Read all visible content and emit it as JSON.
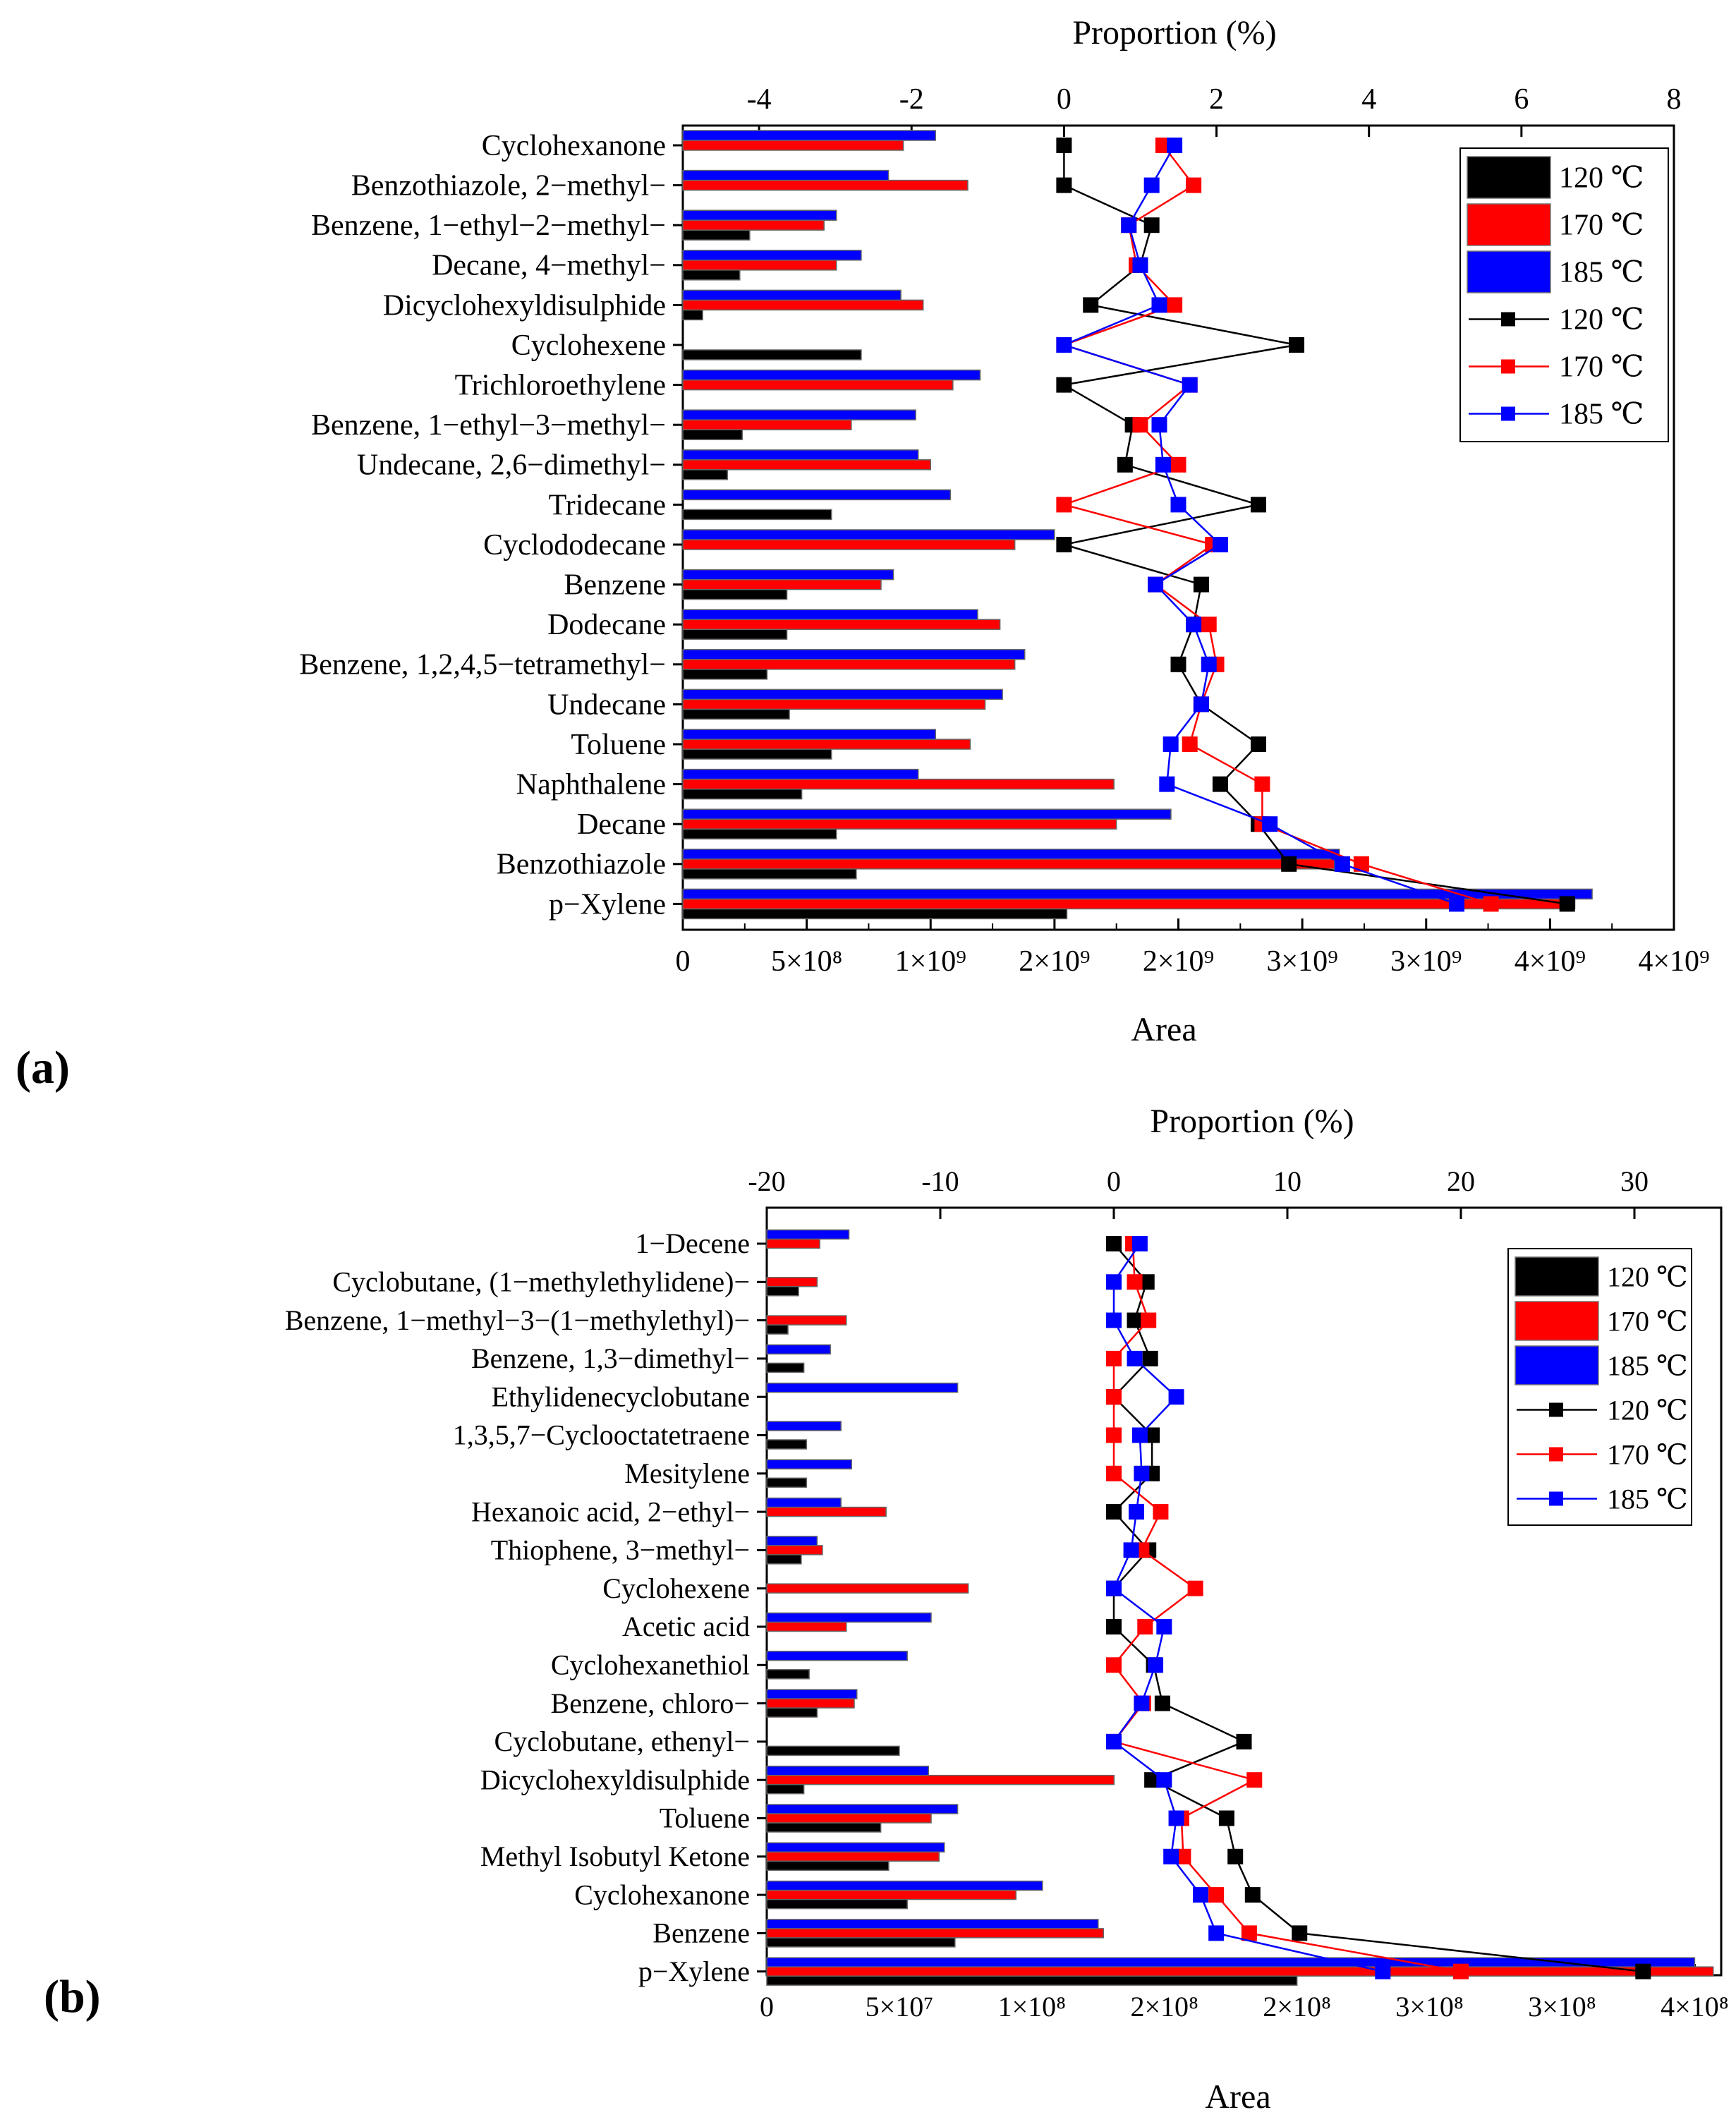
{
  "colors": {
    "t120": "#000000",
    "t170": "#ff0000",
    "t185": "#0000ff"
  },
  "chart_data": [
    {
      "panel_label": "(a)",
      "type": "bar+line",
      "xlabel": "Area",
      "x2label": "Proportion (%)",
      "xlim": [
        0,
        4000000000
      ],
      "x_tick_values": [
        0,
        500000000,
        1000000000,
        1500000000,
        2000000000,
        2500000000,
        3000000000,
        3500000000,
        4000000000
      ],
      "x_tick_labels": [
        "0",
        "5×10⁸",
        "1×10⁹",
        "2×10⁹",
        "2×10⁹",
        "3×10⁹",
        "3×10⁹",
        "4×10⁹",
        "4×10⁹"
      ],
      "x2lim": [
        -5,
        8
      ],
      "x2_tick_values": [
        -4,
        -2,
        0,
        2,
        4,
        6,
        8
      ],
      "x2_tick_labels": [
        "-4",
        "-2",
        "0",
        "2",
        "4",
        "6",
        "8"
      ],
      "legend": [
        "120 ℃",
        "170 ℃",
        "185 ℃",
        "120 ℃",
        "170 ℃",
        "185 ℃"
      ],
      "legend_position": "top-right",
      "categories": [
        "Cyclohexanone",
        "Benzothiazole, 2−methyl−",
        "Benzene, 1−ethyl−2−methyl−",
        "Decane, 4−methyl−",
        "Dicyclohexyldisulphide",
        "Cyclohexene",
        "Trichloroethylene",
        "Benzene, 1−ethyl−3−methyl−",
        "Undecane, 2,6−dimethyl−",
        "Tridecane",
        "Cyclododecane",
        "Benzene",
        "Dodecane",
        "Benzene, 1,2,4,5−tetramethyl−",
        "Undecane",
        "Toluene",
        "Naphthalene",
        "Decane",
        "Benzothiazole",
        "p−Xylene"
      ],
      "bar_series": [
        {
          "name": "120 ℃",
          "color_key": "t120",
          "values": [
            0,
            0,
            270000000,
            230000000,
            80000000,
            720000000,
            0,
            240000000,
            180000000,
            600000000,
            0,
            420000000,
            420000000,
            340000000,
            430000000,
            600000000,
            480000000,
            620000000,
            700000000,
            1550000000
          ]
        },
        {
          "name": "170 ℃",
          "color_key": "t170",
          "values": [
            890000000,
            1150000000,
            570000000,
            620000000,
            970000000,
            0,
            1090000000,
            680000000,
            1000000000,
            0,
            1340000000,
            800000000,
            1280000000,
            1340000000,
            1220000000,
            1160000000,
            1740000000,
            1750000000,
            2630000000,
            3600000000
          ]
        },
        {
          "name": "185 ℃",
          "color_key": "t185",
          "values": [
            1020000000,
            830000000,
            620000000,
            720000000,
            880000000,
            0,
            1200000000,
            940000000,
            950000000,
            1080000000,
            1500000000,
            850000000,
            1190000000,
            1380000000,
            1290000000,
            1020000000,
            950000000,
            1970000000,
            2650000000,
            3670000000
          ]
        }
      ],
      "line_series": [
        {
          "name": "120 ℃",
          "color_key": "t120",
          "values": [
            0,
            0,
            1.15,
            1.0,
            0.35,
            3.05,
            0,
            0.9,
            0.8,
            2.55,
            0,
            1.8,
            1.7,
            1.5,
            1.8,
            2.55,
            2.05,
            2.55,
            2.95,
            6.6
          ]
        },
        {
          "name": "170 ℃",
          "color_key": "t170",
          "values": [
            1.3,
            1.7,
            0.85,
            0.95,
            1.45,
            0,
            1.65,
            1.0,
            1.5,
            0,
            1.95,
            1.2,
            1.9,
            2.0,
            1.8,
            1.65,
            2.6,
            2.6,
            3.9,
            5.6
          ]
        },
        {
          "name": "185 ℃",
          "color_key": "t185",
          "values": [
            1.45,
            1.15,
            0.85,
            1.0,
            1.25,
            0,
            1.65,
            1.25,
            1.3,
            1.5,
            2.05,
            1.2,
            1.7,
            1.9,
            1.8,
            1.4,
            1.35,
            2.7,
            3.65,
            5.15
          ]
        }
      ]
    },
    {
      "panel_label": "(b)",
      "type": "bar+line",
      "xlabel": "Area",
      "x2label": "Proportion (%)",
      "xlim": [
        0,
        360000000
      ],
      "x_tick_values": [
        0,
        50000000,
        100000000,
        150000000,
        200000000,
        250000000,
        300000000,
        350000000
      ],
      "x_tick_labels": [
        "0",
        "5×10⁷",
        "1×10⁸",
        "2×10⁸",
        "2×10⁸",
        "3×10⁸",
        "3×10⁸",
        "4×10⁸"
      ],
      "x2lim": [
        -20,
        35
      ],
      "x2_tick_values": [
        -20,
        -10,
        0,
        10,
        20,
        30
      ],
      "x2_tick_labels": [
        "-20",
        "-10",
        "0",
        "10",
        "20",
        "30"
      ],
      "legend": [
        "120 ℃",
        "170 ℃",
        "185 ℃",
        "120 ℃",
        "170 ℃",
        "185 ℃"
      ],
      "legend_position": "top-right",
      "categories": [
        "1−Decene",
        "Cyclobutane, (1−methylethylidene)−",
        "Benzene, 1−methyl−3−(1−methylethyl)−",
        "Benzene, 1,3−dimethyl−",
        "Ethylidenecyclobutane",
        "1,3,5,7−Cyclooctatetraene",
        "Mesitylene",
        "Hexanoic acid, 2−ethyl−",
        "Thiophene, 3−methyl−",
        "Cyclohexene",
        "Acetic acid",
        "Cyclohexanethiol",
        "Benzene, chloro−",
        "Cyclobutane, ethenyl−",
        "Dicyclohexyldisulphide",
        "Toluene",
        "Methyl Isobutyl Ketone",
        "Cyclohexanone",
        "Benzene",
        "p−Xylene"
      ],
      "bar_series": [
        {
          "name": "120 ℃",
          "color_key": "t120",
          "values": [
            0,
            12000000,
            8000000,
            14000000,
            0,
            15000000,
            15000000,
            0,
            13000000,
            0,
            0,
            16000000,
            19000000,
            50000000,
            14000000,
            43000000,
            46000000,
            53000000,
            71000000,
            200000000
          ]
        },
        {
          "name": "170 ℃",
          "color_key": "t170",
          "values": [
            20000000,
            19000000,
            30000000,
            0,
            0,
            0,
            0,
            45000000,
            21000000,
            76000000,
            30000000,
            0,
            33000000,
            0,
            131000000,
            62000000,
            65000000,
            94000000,
            127000000,
            357000000
          ]
        },
        {
          "name": "185 ℃",
          "color_key": "t185",
          "values": [
            31000000,
            0,
            0,
            24000000,
            72000000,
            28000000,
            32000000,
            28000000,
            19000000,
            0,
            62000000,
            53000000,
            34000000,
            0,
            61000000,
            72000000,
            67000000,
            104000000,
            125000000,
            350000000
          ]
        }
      ],
      "line_series": [
        {
          "name": "120 ℃",
          "color_key": "t120",
          "values": [
            0,
            1.9,
            1.2,
            2.1,
            0,
            2.2,
            2.2,
            0,
            2.0,
            0,
            0,
            2.3,
            2.8,
            7.5,
            2.2,
            6.5,
            7.0,
            8.0,
            10.7,
            30.5
          ]
        },
        {
          "name": "170 ℃",
          "color_key": "t170",
          "values": [
            1.1,
            1.2,
            2.0,
            0,
            0,
            0,
            0,
            2.7,
            1.6,
            4.7,
            1.8,
            0,
            1.7,
            0,
            8.1,
            3.9,
            4.0,
            5.9,
            7.8,
            20.0
          ]
        },
        {
          "name": "185 ℃",
          "color_key": "t185",
          "values": [
            1.5,
            0,
            0,
            1.2,
            3.6,
            1.5,
            1.6,
            1.3,
            1.0,
            0,
            2.9,
            2.4,
            1.6,
            0,
            2.9,
            3.6,
            3.3,
            5.0,
            5.9,
            15.5
          ]
        }
      ]
    }
  ]
}
